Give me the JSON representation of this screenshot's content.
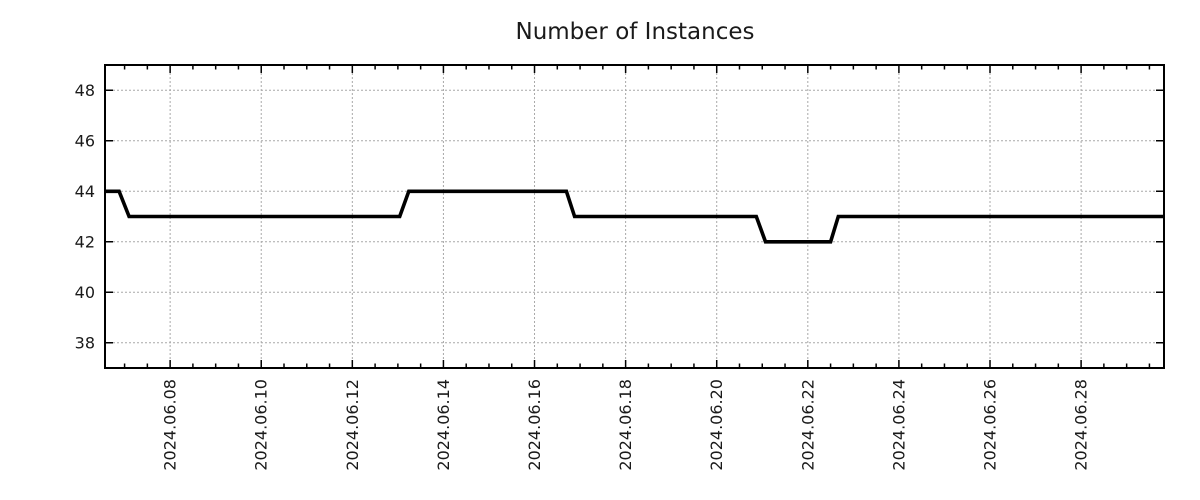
{
  "chart": {
    "background": "#ffffff",
    "line_color": "#000000",
    "grid_color": "#a8a8a8",
    "axis_color": "#000000",
    "label_color": "#1a1a1a"
  },
  "chart_data": {
    "type": "line",
    "title": "Number of Instances",
    "xlabel": "",
    "ylabel": "",
    "legend": "none",
    "grid": true,
    "x_unit": "day of 2024-06 (fractional)",
    "xlim": [
      6.57,
      29.82
    ],
    "ylim": [
      37,
      49
    ],
    "y_ticks": [
      38,
      40,
      42,
      44,
      46,
      48
    ],
    "x_minor_tick_interval": 0.5,
    "x_ticks": {
      "days": [
        8,
        10,
        12,
        14,
        16,
        18,
        20,
        22,
        24,
        26,
        28
      ],
      "labels": [
        "2024.06.08",
        "2024.06.10",
        "2024.06.12",
        "2024.06.14",
        "2024.06.16",
        "2024.06.18",
        "2024.06.20",
        "2024.06.22",
        "2024.06.24",
        "2024.06.26",
        "2024.06.28"
      ]
    },
    "series": [
      {
        "name": "instances",
        "color": "#000000",
        "points": [
          [
            6.57,
            44
          ],
          [
            6.88,
            44
          ],
          [
            7.1,
            43
          ],
          [
            13.04,
            43
          ],
          [
            13.24,
            44
          ],
          [
            16.7,
            44
          ],
          [
            16.88,
            43
          ],
          [
            20.87,
            43
          ],
          [
            21.07,
            42
          ],
          [
            22.5,
            42
          ],
          [
            22.67,
            43
          ],
          [
            29.82,
            43
          ]
        ]
      }
    ],
    "summary_steps": [
      {
        "value": 44,
        "until": "2024-06-07"
      },
      {
        "value": 43,
        "until": "2024-06-13"
      },
      {
        "value": 44,
        "until": "2024-06-17"
      },
      {
        "value": 43,
        "until": "2024-06-21"
      },
      {
        "value": 42,
        "until": "2024-06-22.6"
      },
      {
        "value": 43,
        "until": "end"
      }
    ]
  }
}
